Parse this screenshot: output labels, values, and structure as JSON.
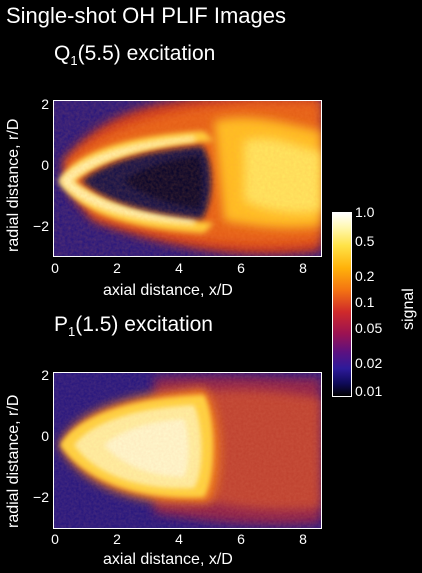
{
  "title": "Single-shot OH PLIF Images",
  "panels": [
    {
      "label_main": "Q",
      "label_sub": "1",
      "label_rest": "(5.5) excitation",
      "xlabel": "axial distance,  x/D",
      "ylabel": "radial distance,  r/D",
      "xticks": [
        "0",
        "2",
        "4",
        "6",
        "8"
      ],
      "yticks": [
        "2",
        "0",
        "−2"
      ]
    },
    {
      "label_main": "P",
      "label_sub": "1",
      "label_rest": "(1.5) excitation",
      "xlabel": "axial distance,  x/D",
      "ylabel": "radial distance,  r/D",
      "xticks": [
        "0",
        "2",
        "4",
        "6",
        "8"
      ],
      "yticks": [
        "2",
        "0",
        "−2"
      ]
    }
  ],
  "colorbar": {
    "label": "signal",
    "ticks": [
      "1.0",
      "0.5",
      "0.2",
      "0.1",
      "0.05",
      "0.02",
      "0.01"
    ]
  }
}
